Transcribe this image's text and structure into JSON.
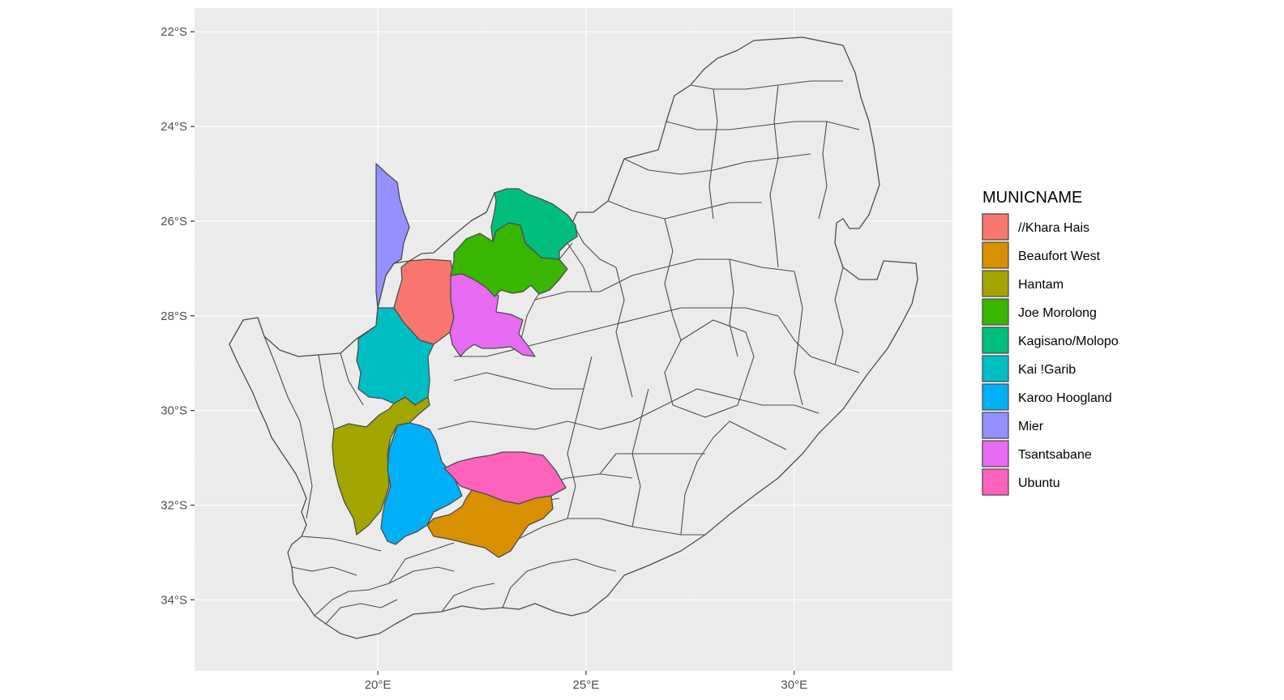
{
  "map": {
    "x_axis": {
      "ticks": [
        {
          "value": 20,
          "label": "20°E"
        },
        {
          "value": 25,
          "label": "25°E"
        },
        {
          "value": 30,
          "label": "30°E"
        }
      ],
      "range": [
        15.6,
        33.8
      ]
    },
    "y_axis": {
      "ticks": [
        {
          "value": -22,
          "label": "22°S"
        },
        {
          "value": -24,
          "label": "24°S"
        },
        {
          "value": -26,
          "label": "26°S"
        },
        {
          "value": -28,
          "label": "28°S"
        },
        {
          "value": -30,
          "label": "30°S"
        },
        {
          "value": -32,
          "label": "32°S"
        },
        {
          "value": -34,
          "label": "34°S"
        }
      ],
      "range": [
        -35.5,
        -21.5
      ]
    },
    "panel_background": "#ebebeb",
    "base_fill": "#ebebeb",
    "border_color": "#4d4d4d"
  },
  "legend": {
    "title": "MUNICNAME",
    "items": [
      {
        "label": "//Khara Hais",
        "color": "#F8766D"
      },
      {
        "label": "Beaufort West",
        "color": "#D89000"
      },
      {
        "label": "Hantam",
        "color": "#A3A500"
      },
      {
        "label": "Joe Morolong",
        "color": "#39B600"
      },
      {
        "label": "Kagisano/Molopo",
        "color": "#00BF7D"
      },
      {
        "label": "Kai !Garib",
        "color": "#00BFC4"
      },
      {
        "label": "Karoo Hoogland",
        "color": "#00B0F6"
      },
      {
        "label": "Mier",
        "color": "#9590FF"
      },
      {
        "label": "Tsantsabane",
        "color": "#E76BF3"
      },
      {
        "label": "Ubuntu",
        "color": "#FF62BC"
      }
    ]
  }
}
